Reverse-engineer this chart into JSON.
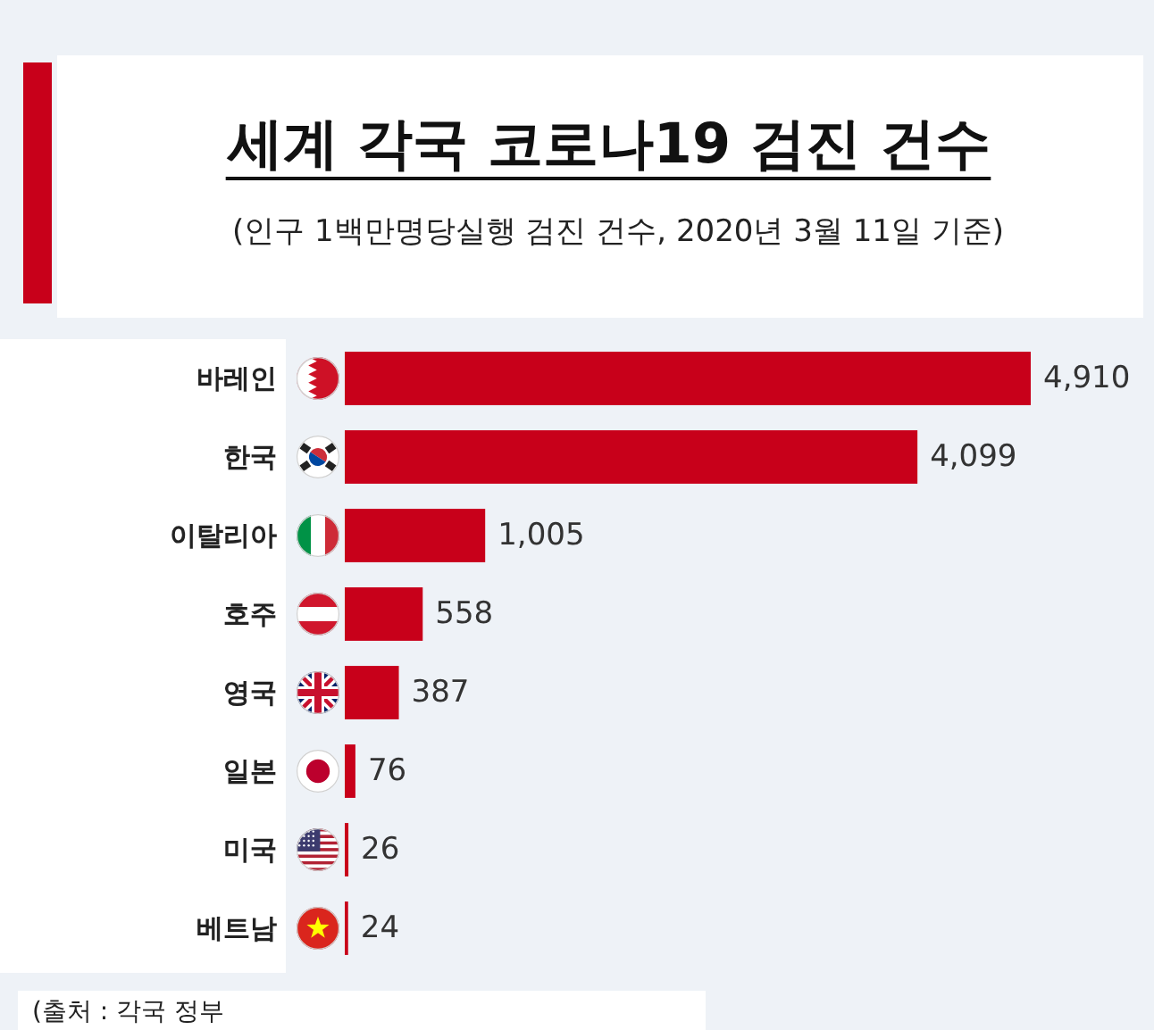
{
  "chart_data": {
    "type": "bar",
    "orientation": "horizontal",
    "title": "세계 각국 코로나19 검진 건수",
    "subtitle": "(인구 1백만명당실행 검진 건수, 2020년 3월 11일 기준)",
    "categories": [
      "바레인",
      "한국",
      "이탈리아",
      "호주",
      "영국",
      "일본",
      "미국",
      "베트남"
    ],
    "values": [
      4910,
      4099,
      1005,
      558,
      387,
      76,
      26,
      24
    ],
    "value_labels": [
      "4,910",
      "4,099",
      "1,005",
      "558",
      "387",
      "76",
      "26",
      "24"
    ],
    "color": "#c8001a",
    "annotations": [
      "(출처 : 각국 정부"
    ]
  }
}
